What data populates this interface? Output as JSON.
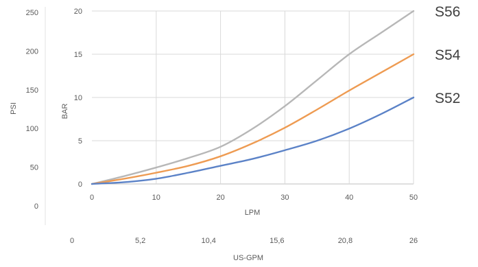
{
  "chart_data": {
    "type": "line",
    "x": [
      0,
      5,
      10,
      15,
      20,
      25,
      30,
      35,
      40,
      45,
      50
    ],
    "series": [
      {
        "name": "S56",
        "color": "#b7b7b7",
        "values": [
          0,
          0.9,
          1.9,
          3.0,
          4.3,
          6.4,
          9.0,
          12.0,
          15.0,
          17.5,
          20.0
        ]
      },
      {
        "name": "S54",
        "color": "#ee9b52",
        "values": [
          0,
          0.6,
          1.3,
          2.1,
          3.2,
          4.7,
          6.5,
          8.6,
          10.8,
          12.9,
          15.0
        ]
      },
      {
        "name": "S52",
        "color": "#5b82c7",
        "values": [
          0,
          0.2,
          0.6,
          1.3,
          2.1,
          2.9,
          3.9,
          5.0,
          6.4,
          8.1,
          10.0
        ]
      }
    ],
    "xlabel": "LPM",
    "x_ticks": [
      "0",
      "10",
      "20",
      "30",
      "40",
      "50"
    ],
    "xlim": [
      0,
      50
    ],
    "ylabel": "BAR",
    "y_ticks": [
      "0",
      "5",
      "10",
      "15",
      "20"
    ],
    "ylim": [
      0,
      20
    ],
    "y2label": "PSI",
    "y2_ticks": [
      "0",
      "50",
      "100",
      "150",
      "200",
      "250"
    ],
    "x2label": "US-GPM",
    "x2_ticks": [
      "0",
      "5,2",
      "10,4",
      "15,6",
      "20,8",
      "26"
    ],
    "grid": true
  }
}
